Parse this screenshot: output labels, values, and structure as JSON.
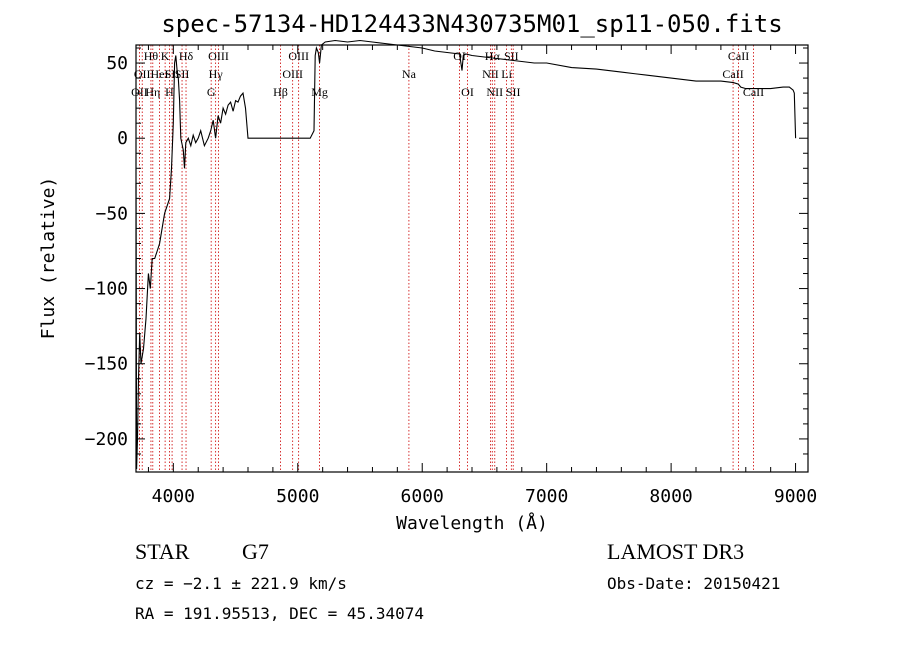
{
  "chart_data": {
    "type": "line",
    "title": "spec-57134-HD124433N430735M01_sp11-050.fits",
    "xlabel": "Wavelength (Å)",
    "ylabel": "Flux (relative)",
    "xlim": [
      3700,
      9100
    ],
    "ylim": [
      -222,
      62
    ],
    "x_ticks": [
      4000,
      5000,
      6000,
      7000,
      8000,
      9000
    ],
    "x_tick_labels": [
      "4000",
      "5000",
      "6000",
      "7000",
      "8000",
      "9000"
    ],
    "y_ticks": [
      -200,
      -150,
      -100,
      -50,
      0,
      50
    ],
    "y_tick_labels": [
      "−200",
      "−150",
      "−100",
      "−50",
      "0",
      "50"
    ],
    "line_color": "#000000",
    "marker_color": "#cc0000",
    "series": [
      {
        "name": "flux",
        "x": [
          3700,
          3705,
          3712,
          3720,
          3730,
          3740,
          3760,
          3780,
          3800,
          3815,
          3830,
          3850,
          3870,
          3890,
          3910,
          3930,
          3950,
          3970,
          3985,
          4000,
          4010,
          4020,
          4030,
          4040,
          4050,
          4060,
          4080,
          4090,
          4100,
          4120,
          4140,
          4160,
          4180,
          4200,
          4220,
          4250,
          4280,
          4300,
          4320,
          4340,
          4360,
          4380,
          4400,
          4420,
          4440,
          4460,
          4480,
          4500,
          4520,
          4540,
          4560,
          4580,
          4600,
          4700,
          4800,
          4900,
          5000,
          5100,
          5130,
          5140,
          5150,
          5165,
          5175,
          5190,
          5220,
          5300,
          5400,
          5500,
          5600,
          5700,
          5800,
          5900,
          6000,
          6100,
          6200,
          6300,
          6320,
          6330,
          6350,
          6400,
          6500,
          6600,
          6700,
          6800,
          6900,
          7000,
          7200,
          7400,
          7600,
          7800,
          8000,
          8200,
          8400,
          8500,
          8540,
          8560,
          8600,
          8660,
          8700,
          8800,
          8900,
          8950,
          8980,
          8990,
          9000
        ],
        "y": [
          -30,
          -220,
          -200,
          -160,
          -130,
          -150,
          -140,
          -120,
          -90,
          -100,
          -80,
          -80,
          -75,
          -70,
          -60,
          -50,
          -45,
          -40,
          -20,
          10,
          50,
          55,
          45,
          40,
          25,
          0,
          -8,
          -20,
          -3,
          0,
          -5,
          2,
          -3,
          0,
          5,
          -5,
          0,
          5,
          12,
          0,
          15,
          10,
          20,
          16,
          22,
          24,
          18,
          25,
          24,
          28,
          30,
          20,
          0,
          0,
          0,
          0,
          0,
          0,
          5,
          55,
          60,
          57,
          50,
          62,
          64,
          65,
          64,
          65,
          64,
          63,
          62,
          61,
          60,
          58,
          57,
          56,
          45,
          55,
          56,
          55,
          54,
          53,
          52,
          51,
          50,
          50,
          47,
          46,
          44,
          42,
          40,
          38,
          38,
          37,
          36,
          34,
          33,
          33,
          33,
          33,
          34,
          34,
          32,
          30,
          0
        ]
      }
    ],
    "line_markers": [
      {
        "wl": 3728,
        "label": "OII",
        "row": 3
      },
      {
        "wl": 3750,
        "label": "OII",
        "row": 2
      },
      {
        "wl": 3820,
        "label": "Hθ",
        "row": 1
      },
      {
        "wl": 3835,
        "label": "Hη",
        "row": 3
      },
      {
        "wl": 3889,
        "label": "HeI",
        "row": 2
      },
      {
        "wl": 3934,
        "label": "K",
        "row": 1
      },
      {
        "wl": 3969,
        "label": "H",
        "row": 3
      },
      {
        "wl": 3990,
        "label": "SII",
        "row": 2
      },
      {
        "wl": 4102,
        "label": "Hδ",
        "row": 1
      },
      {
        "wl": 4070,
        "label": "SII",
        "row": 2
      },
      {
        "wl": 4304,
        "label": "G",
        "row": 3
      },
      {
        "wl": 4340,
        "label": "Hγ",
        "row": 2
      },
      {
        "wl": 4363,
        "label": "OIII",
        "row": 1
      },
      {
        "wl": 4861,
        "label": "Hβ",
        "row": 3
      },
      {
        "wl": 4959,
        "label": "OIII",
        "row": 2
      },
      {
        "wl": 5007,
        "label": "OIII",
        "row": 1
      },
      {
        "wl": 5175,
        "label": "Mg",
        "row": 3
      },
      {
        "wl": 5893,
        "label": "Na",
        "row": 2
      },
      {
        "wl": 6300,
        "label": "OI",
        "row": 1
      },
      {
        "wl": 6364,
        "label": "OI",
        "row": 3
      },
      {
        "wl": 6548,
        "label": "NII",
        "row": 2
      },
      {
        "wl": 6563,
        "label": "Hα",
        "row": 1
      },
      {
        "wl": 6583,
        "label": "NII",
        "row": 3
      },
      {
        "wl": 6678,
        "label": "Li",
        "row": 2
      },
      {
        "wl": 6716,
        "label": "SII",
        "row": 1
      },
      {
        "wl": 6731,
        "label": "SII",
        "row": 3
      },
      {
        "wl": 8498,
        "label": "CaII",
        "row": 2
      },
      {
        "wl": 8542,
        "label": "CaII",
        "row": 1
      },
      {
        "wl": 8662,
        "label": "CaII",
        "row": 3
      }
    ]
  },
  "info": {
    "object_type": "STAR",
    "subclass": "G7",
    "survey": "LAMOST DR3",
    "cz": "cz = −2.1 ± 221.9 km/s",
    "obs_date": "Obs-Date: 20150421",
    "coords": "RA = 191.95513, DEC =  45.34074"
  }
}
